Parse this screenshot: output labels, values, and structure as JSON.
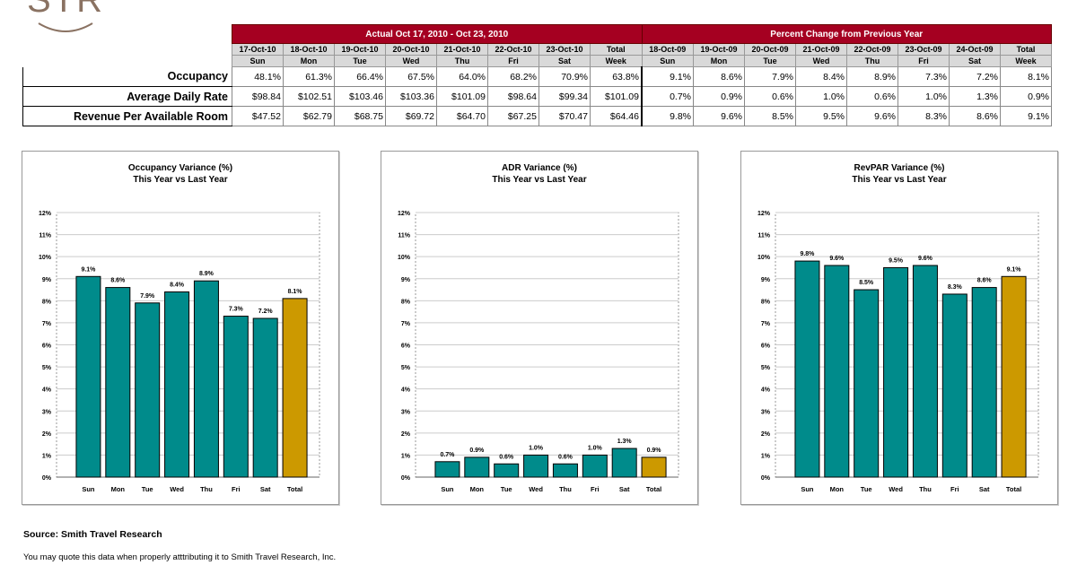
{
  "logo": {
    "text": "STR"
  },
  "table": {
    "actual_header": "Actual Oct 17, 2010 - Oct 23, 2010",
    "change_header": "Percent Change from Previous Year",
    "actual_dates": [
      "17-Oct-10",
      "18-Oct-10",
      "19-Oct-10",
      "20-Oct-10",
      "21-Oct-10",
      "22-Oct-10",
      "23-Oct-10",
      "Total"
    ],
    "actual_days": [
      "Sun",
      "Mon",
      "Tue",
      "Wed",
      "Thu",
      "Fri",
      "Sat",
      "Week"
    ],
    "change_dates": [
      "18-Oct-09",
      "19-Oct-09",
      "20-Oct-09",
      "21-Oct-09",
      "22-Oct-09",
      "23-Oct-09",
      "24-Oct-09",
      "Total"
    ],
    "change_days": [
      "Sun",
      "Mon",
      "Tue",
      "Wed",
      "Thu",
      "Fri",
      "Sat",
      "Week"
    ],
    "rows": [
      {
        "label": "Occupancy",
        "actual": [
          "48.1%",
          "61.3%",
          "66.4%",
          "67.5%",
          "64.0%",
          "68.2%",
          "70.9%",
          "63.8%"
        ],
        "change": [
          "9.1%",
          "8.6%",
          "7.9%",
          "8.4%",
          "8.9%",
          "7.3%",
          "7.2%",
          "8.1%"
        ]
      },
      {
        "label": "Average Daily Rate",
        "actual": [
          "$98.84",
          "$102.51",
          "$103.46",
          "$103.36",
          "$101.09",
          "$98.64",
          "$99.34",
          "$101.09"
        ],
        "change": [
          "0.7%",
          "0.9%",
          "0.6%",
          "1.0%",
          "0.6%",
          "1.0%",
          "1.3%",
          "0.9%"
        ]
      },
      {
        "label": "Revenue Per Available Room",
        "actual": [
          "$47.52",
          "$62.79",
          "$68.75",
          "$69.72",
          "$64.70",
          "$67.25",
          "$70.47",
          "$64.46"
        ],
        "change": [
          "9.8%",
          "9.6%",
          "8.5%",
          "9.5%",
          "9.6%",
          "8.3%",
          "8.6%",
          "9.1%"
        ]
      }
    ]
  },
  "chart_data": [
    {
      "type": "bar",
      "title": "Occupancy Variance (%)",
      "subtitle": "This Year vs Last Year",
      "categories": [
        "Sun",
        "Mon",
        "Tue",
        "Wed",
        "Thu",
        "Fri",
        "Sat",
        "Total"
      ],
      "values": [
        9.1,
        8.6,
        7.9,
        8.4,
        8.9,
        7.3,
        7.2,
        8.1
      ],
      "data_labels": [
        "9.1%",
        "8.6%",
        "7.9%",
        "8.4%",
        "8.9%",
        "7.3%",
        "7.2%",
        "8.1%"
      ],
      "ylim": [
        0,
        12
      ],
      "yticks": [
        "0%",
        "1%",
        "2%",
        "3%",
        "4%",
        "5%",
        "6%",
        "7%",
        "8%",
        "9%",
        "10%",
        "11%",
        "12%"
      ],
      "grid": true,
      "colors": {
        "day": "#008b8b",
        "total": "#cc9900"
      }
    },
    {
      "type": "bar",
      "title": "ADR Variance (%)",
      "subtitle": "This Year vs Last Year",
      "categories": [
        "Sun",
        "Mon",
        "Tue",
        "Wed",
        "Thu",
        "Fri",
        "Sat",
        "Total"
      ],
      "values": [
        0.7,
        0.9,
        0.6,
        1.0,
        0.6,
        1.0,
        1.3,
        0.9
      ],
      "data_labels": [
        "0.7%",
        "0.9%",
        "0.6%",
        "1.0%",
        "0.6%",
        "1.0%",
        "1.3%",
        "0.9%"
      ],
      "ylim": [
        0,
        12
      ],
      "yticks": [
        "0%",
        "1%",
        "2%",
        "3%",
        "4%",
        "5%",
        "6%",
        "7%",
        "8%",
        "9%",
        "10%",
        "11%",
        "12%"
      ],
      "grid": true,
      "colors": {
        "day": "#008b8b",
        "total": "#cc9900"
      }
    },
    {
      "type": "bar",
      "title": "RevPAR Variance (%)",
      "subtitle": "This Year vs Last Year",
      "categories": [
        "Sun",
        "Mon",
        "Tue",
        "Wed",
        "Thu",
        "Fri",
        "Sat",
        "Total"
      ],
      "values": [
        9.8,
        9.6,
        8.5,
        9.5,
        9.6,
        8.3,
        8.6,
        9.1
      ],
      "data_labels": [
        "9.8%",
        "9.6%",
        "8.5%",
        "9.5%",
        "9.6%",
        "8.3%",
        "8.6%",
        "9.1%"
      ],
      "ylim": [
        0,
        12
      ],
      "yticks": [
        "0%",
        "1%",
        "2%",
        "3%",
        "4%",
        "5%",
        "6%",
        "7%",
        "8%",
        "9%",
        "10%",
        "11%",
        "12%"
      ],
      "grid": true,
      "colors": {
        "day": "#008b8b",
        "total": "#cc9900"
      }
    }
  ],
  "footer": {
    "source": "Source: Smith Travel Research",
    "note": "You may quote this data when properly atttributing it to Smith Travel Research, Inc."
  }
}
